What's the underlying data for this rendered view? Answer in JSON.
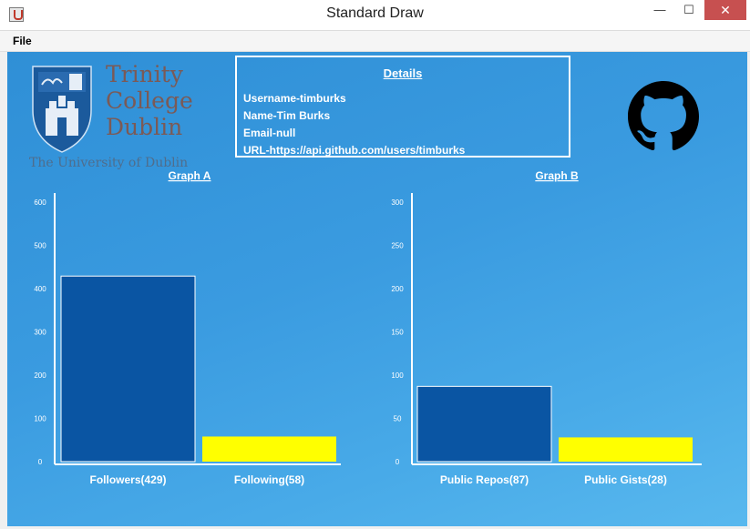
{
  "window": {
    "title": "Standard Draw",
    "minimize": "—",
    "maximize": "☐",
    "close": "✕"
  },
  "menu": {
    "file": "File"
  },
  "logo": {
    "line1": "Trinity",
    "line2": "College",
    "line3": "Dublin",
    "subtitle": "The University of Dublin"
  },
  "details": {
    "title": "Details",
    "username": "Username-timburks",
    "name": "Name-Tim Burks",
    "email": "Email-null",
    "url": "URL-https://api.github.com/users/timburks"
  },
  "icons": {
    "github": "github-icon",
    "logo": "trinity-college-crest-icon"
  },
  "colors": {
    "background": "#3a9be0",
    "bar_primary": "#0a55a3",
    "bar_secondary": "#ffff00",
    "axis": "#ffffff"
  },
  "chart_data": [
    {
      "type": "bar",
      "title": "Graph A",
      "categories": [
        "Followers(429)",
        "Following(58)"
      ],
      "values": [
        429,
        58
      ],
      "ylim": [
        0,
        600
      ],
      "yticks": [
        0,
        100,
        200,
        300,
        400,
        500,
        600
      ],
      "xlabel": "",
      "ylabel": ""
    },
    {
      "type": "bar",
      "title": "Graph B",
      "categories": [
        "Public Repos(87)",
        "Public Gists(28)"
      ],
      "values": [
        87,
        28
      ],
      "ylim": [
        0,
        300
      ],
      "yticks": [
        0,
        50,
        100,
        150,
        200,
        250,
        300
      ],
      "xlabel": "",
      "ylabel": ""
    }
  ]
}
